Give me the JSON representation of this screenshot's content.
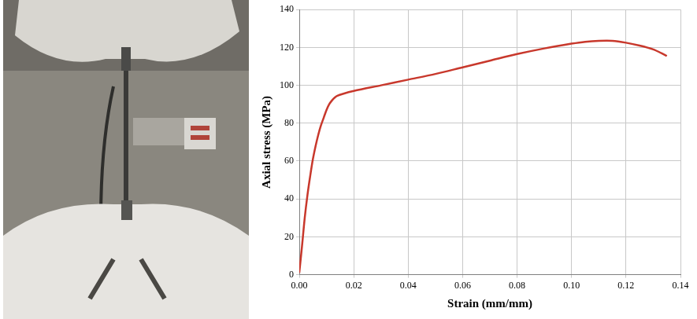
{
  "chart_data": {
    "type": "line",
    "x_label": "Strain (mm/mm)",
    "y_label": "Axial stress (MPa)",
    "x": [
      0,
      0.001,
      0.002,
      0.003,
      0.004,
      0.005,
      0.006,
      0.007,
      0.008,
      0.009,
      0.01,
      0.011,
      0.012,
      0.013,
      0.014,
      0.016,
      0.02,
      0.03,
      0.04,
      0.05,
      0.06,
      0.07,
      0.08,
      0.09,
      0.1,
      0.105,
      0.11,
      0.115,
      0.12,
      0.125,
      0.13,
      0.133,
      0.135
    ],
    "values": [
      1,
      15,
      30,
      42,
      52,
      61,
      68,
      74,
      79,
      83,
      87,
      90,
      92,
      93.5,
      94.5,
      95.5,
      97,
      100,
      103,
      106,
      109.5,
      113,
      116.5,
      119.5,
      122,
      123,
      123.5,
      123.5,
      122.5,
      121,
      119,
      117,
      115.5
    ],
    "color": "#c8382c",
    "xlim": [
      0,
      0.14
    ],
    "xticks": [
      {
        "value": 0,
        "label": "0.00"
      },
      {
        "value": 0.02,
        "label": "0.02"
      },
      {
        "value": 0.04,
        "label": "0.04"
      },
      {
        "value": 0.06,
        "label": "0.06"
      },
      {
        "value": 0.08,
        "label": "0.08"
      },
      {
        "value": 0.1,
        "label": "0.10"
      },
      {
        "value": 0.12,
        "label": "0.12"
      },
      {
        "value": 0.14,
        "label": "0.14"
      }
    ],
    "ylim": [
      0,
      140
    ],
    "yticks": [
      0,
      20,
      40,
      60,
      80,
      100,
      120,
      140
    ],
    "grid": true
  }
}
